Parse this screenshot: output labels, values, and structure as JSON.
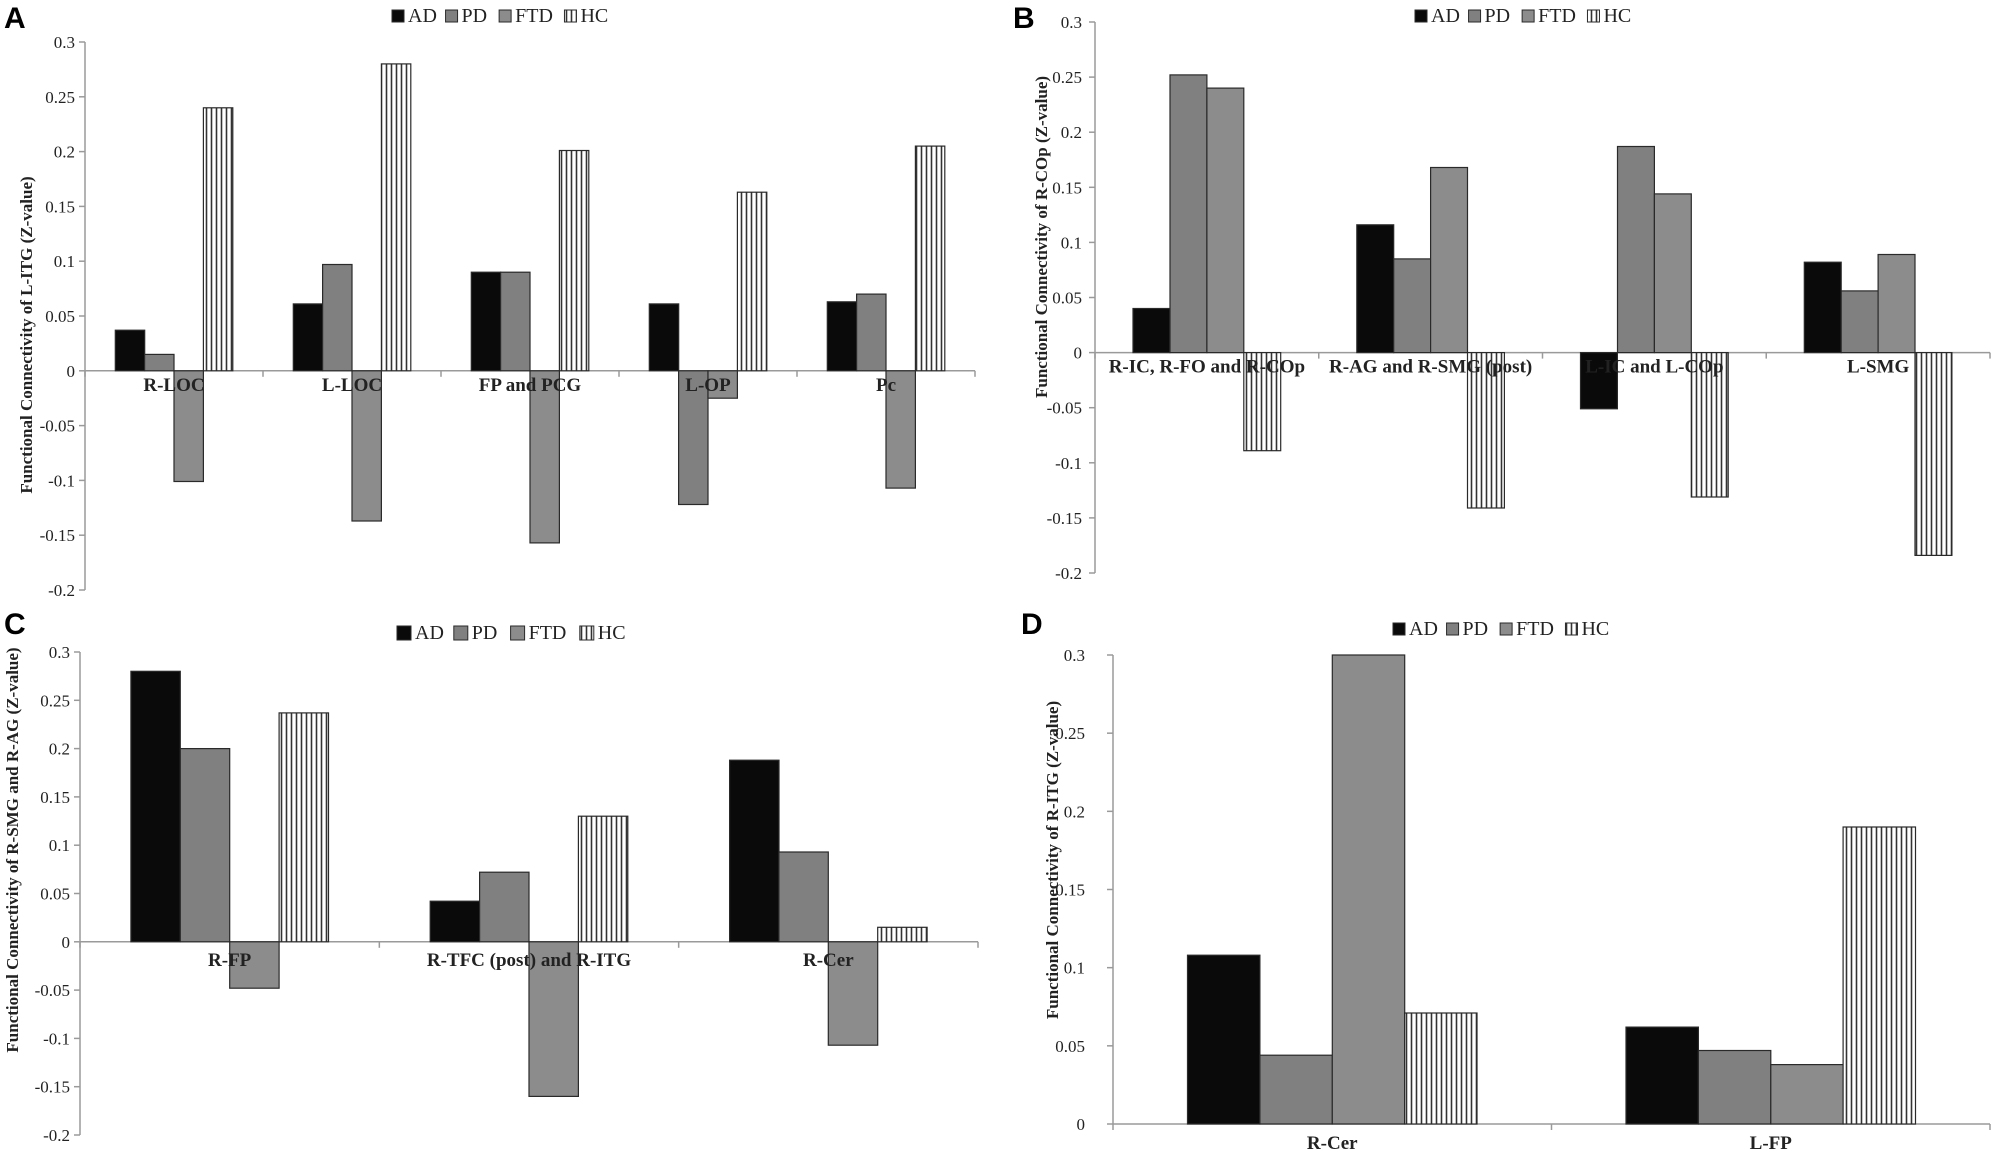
{
  "chart_data": [
    {
      "panel": "A",
      "type": "bar",
      "ylabel": "Functional Connectivity of L-ITG (Z-value)",
      "ylim": [
        -0.2,
        0.3
      ],
      "yticks": [
        "-0.2",
        "-0.15",
        "-0.1",
        "-0.05",
        "0",
        "0.05",
        "0.1",
        "0.15",
        "0.2",
        "0.25",
        "0.3"
      ],
      "categories": [
        "R-LOC",
        "L-LOC",
        "FP and PCG",
        "L-OP",
        "Pc"
      ],
      "series": [
        {
          "name": "AD",
          "values": [
            0.037,
            0.061,
            0.09,
            0.061,
            0.063
          ]
        },
        {
          "name": "PD",
          "values": [
            0.015,
            0.097,
            0.09,
            -0.122,
            0.07
          ]
        },
        {
          "name": "FTD",
          "values": [
            -0.101,
            -0.137,
            -0.157,
            -0.025,
            -0.107
          ]
        },
        {
          "name": "HC",
          "values": [
            0.24,
            0.28,
            0.201,
            0.163,
            0.205
          ]
        }
      ]
    },
    {
      "panel": "B",
      "type": "bar",
      "ylabel": "Functional Connectivity of R-COp (Z-value)",
      "ylim": [
        -0.2,
        0.3
      ],
      "yticks": [
        "-0.2",
        "-0.15",
        "-0.1",
        "-0.05",
        "0",
        "0.05",
        "0.1",
        "0.15",
        "0.2",
        "0.25",
        "0.3"
      ],
      "categories": [
        "R-IC, R-FO and R-COp",
        "R-AG and R-SMG (post)",
        "L-IC and L-COp",
        "L-SMG"
      ],
      "series": [
        {
          "name": "AD",
          "values": [
            0.04,
            0.116,
            -0.051,
            0.082
          ]
        },
        {
          "name": "PD",
          "values": [
            0.252,
            0.085,
            0.187,
            0.056
          ]
        },
        {
          "name": "FTD",
          "values": [
            0.24,
            0.168,
            0.144,
            0.089
          ]
        },
        {
          "name": "HC",
          "values": [
            -0.089,
            -0.141,
            -0.131,
            -0.184
          ]
        }
      ]
    },
    {
      "panel": "C",
      "type": "bar",
      "ylabel": "Functional Connectivity of R-SMG and R-AG (Z-value)",
      "ylim": [
        -0.2,
        0.3
      ],
      "yticks": [
        "-0.2",
        "-0.15",
        "-0.1",
        "-0.05",
        "0",
        "0.05",
        "0.1",
        "0.15",
        "0.2",
        "0.25",
        "0.3"
      ],
      "categories": [
        "R-FP",
        "R-TFC (post) and R-ITG",
        "R-Cer"
      ],
      "series": [
        {
          "name": "AD",
          "values": [
            0.28,
            0.042,
            0.188
          ]
        },
        {
          "name": "PD",
          "values": [
            0.2,
            0.072,
            0.093
          ]
        },
        {
          "name": "FTD",
          "values": [
            -0.048,
            -0.16,
            -0.107
          ]
        },
        {
          "name": "HC",
          "values": [
            0.237,
            0.13,
            0.015
          ]
        }
      ]
    },
    {
      "panel": "D",
      "type": "bar",
      "ylabel": "Functional Connectivity of R-ITG (Z-value)",
      "ylim": [
        0,
        0.3
      ],
      "yticks": [
        "0",
        "0.05",
        "0.1",
        "0.15",
        "0.2",
        "0.25",
        "0.3"
      ],
      "categories": [
        "R-Cer",
        "L-FP"
      ],
      "series": [
        {
          "name": "AD",
          "values": [
            0.108,
            0.062
          ]
        },
        {
          "name": "PD",
          "values": [
            0.044,
            0.047
          ]
        },
        {
          "name": "FTD",
          "values": [
            0.3,
            0.038
          ]
        },
        {
          "name": "HC",
          "values": [
            0.071,
            0.19
          ]
        }
      ]
    }
  ],
  "colors": {
    "AD": "#0a0a0a",
    "PD": "#808080",
    "FTD": "#8c8c8c",
    "HC": "#ffffff",
    "axis": "#9a9a9a",
    "hatch": "#333333"
  }
}
